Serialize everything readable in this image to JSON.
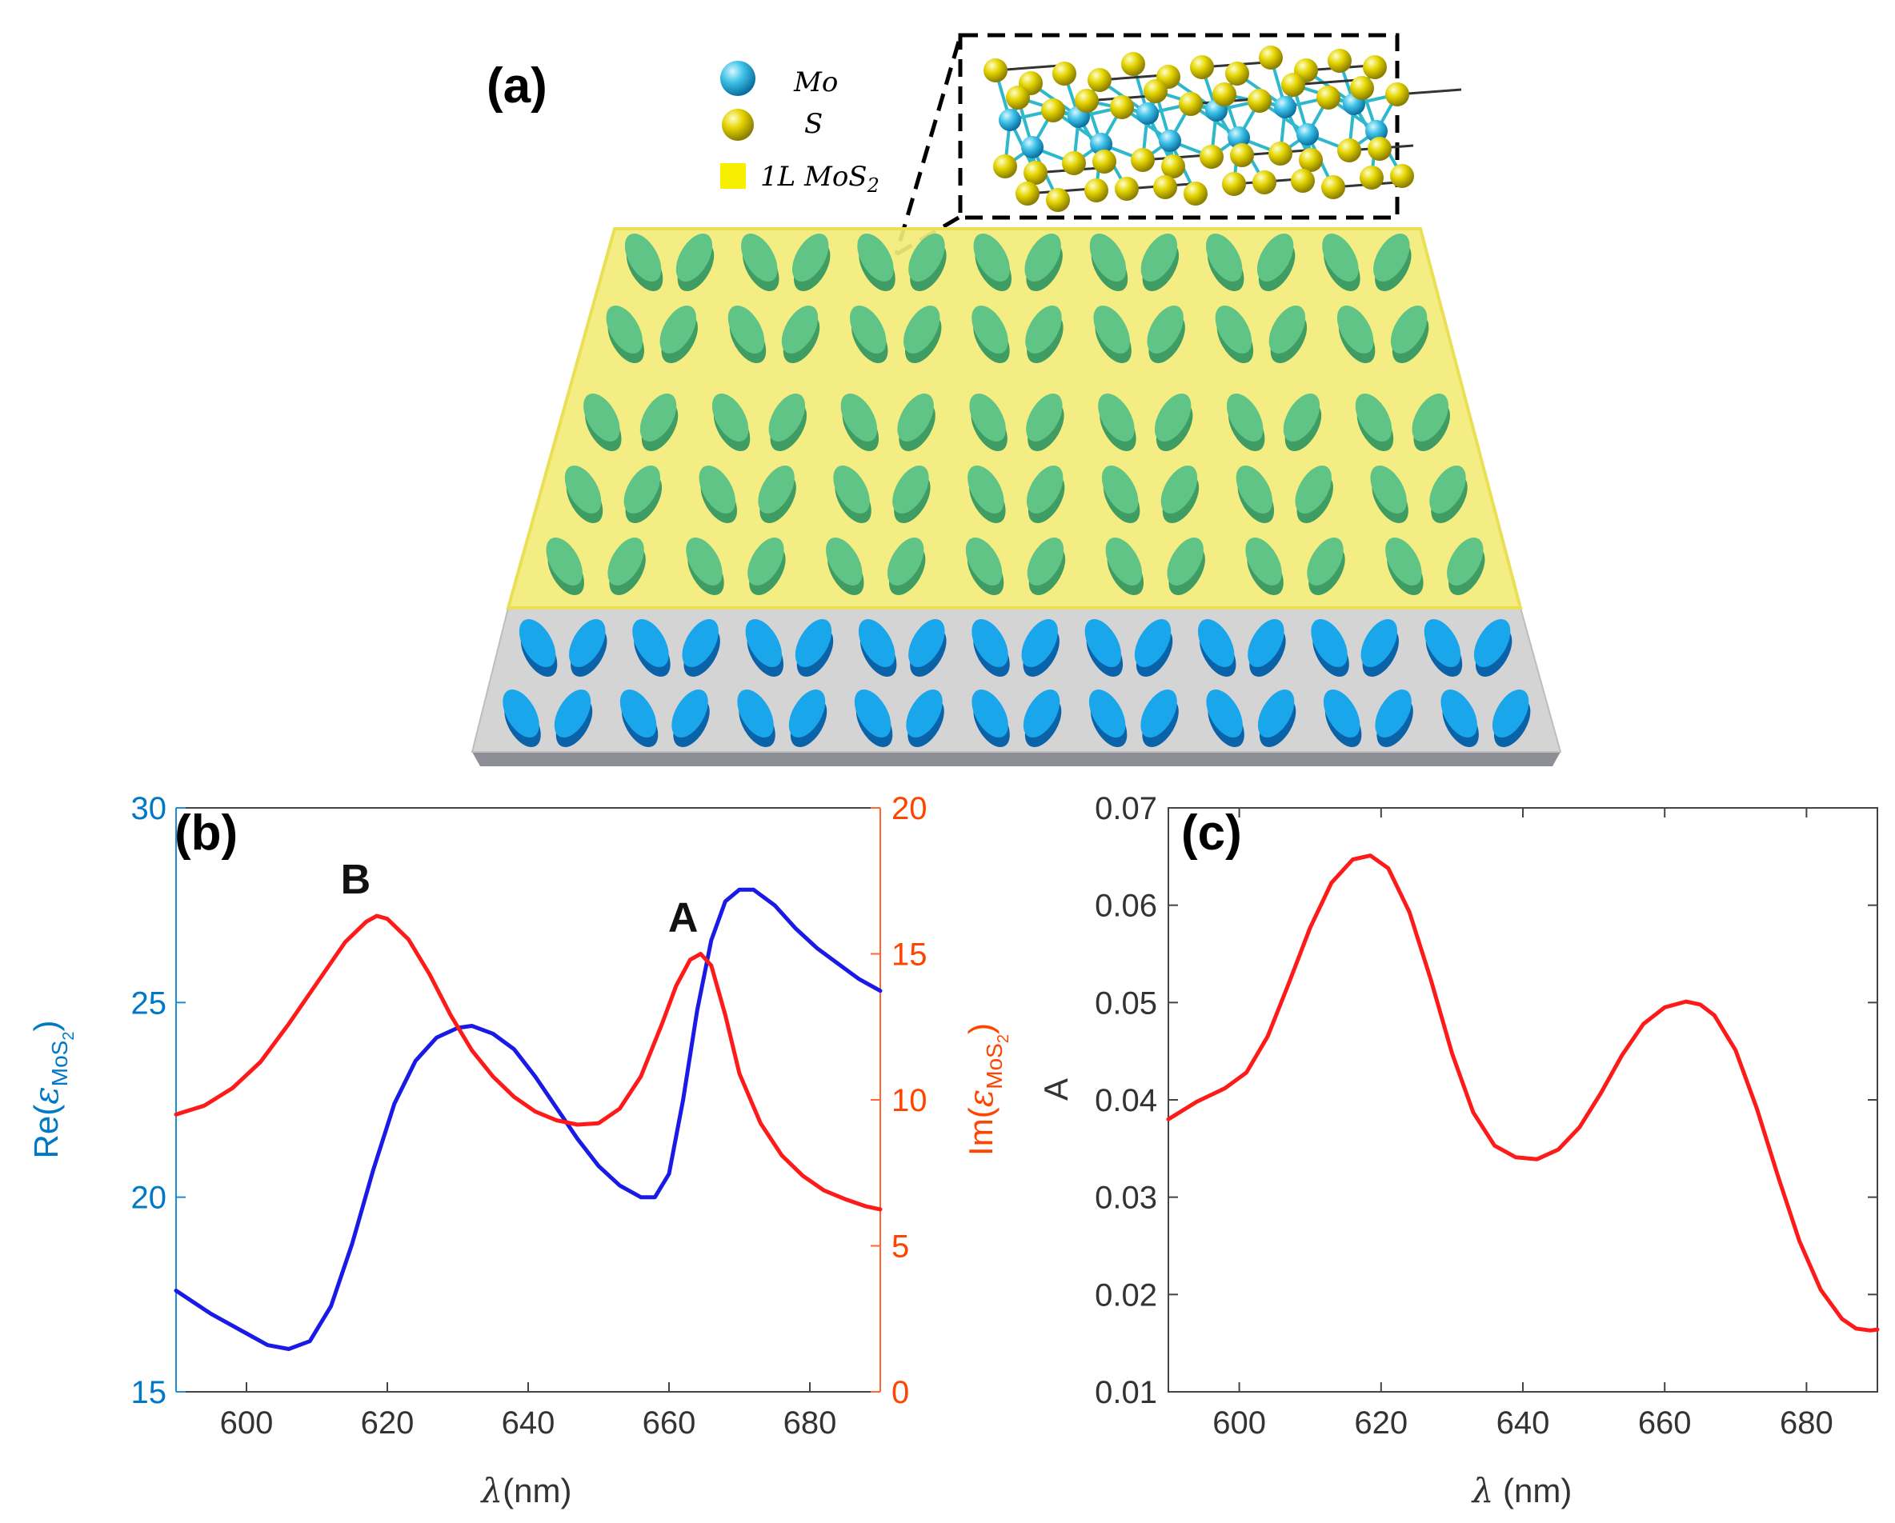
{
  "panel_a": {
    "label": "(a)",
    "legend": {
      "mo": "Mo",
      "s": "S",
      "layer_main": "1L MoS",
      "layer_sub": "2"
    },
    "colors": {
      "mo": "#2eb8cc",
      "s": "#e6d400",
      "layer": "#f2ea6b",
      "substrate": "#d2d2d2",
      "green_disk": "#5fc485",
      "blue_disk": "#1aa6ea"
    }
  },
  "chart_data": [
    {
      "type": "line",
      "panel": "(b)",
      "xlabel_symbol": "λ",
      "xlabel": "(nm)",
      "ylabel_left": {
        "pre": "Re(",
        "eps": "ε",
        "sub": "MoS",
        "sub2": "2",
        "post": ")"
      },
      "ylabel_right": {
        "pre": "Im(",
        "eps": "ε",
        "sub": "MoS",
        "sub2": "2",
        "post": ")"
      },
      "xlim": [
        590,
        690
      ],
      "ylim_left": [
        15,
        30
      ],
      "ylim_right": [
        0,
        20
      ],
      "xticks": [
        600,
        620,
        640,
        660,
        680
      ],
      "yticks_left": [
        15,
        20,
        25,
        30
      ],
      "yticks_right": [
        0,
        5,
        10,
        15,
        20
      ],
      "annotations": [
        {
          "text": "B",
          "x": 618,
          "y_right": 16.3
        },
        {
          "text": "A",
          "x": 664.5,
          "y_right": 15.0
        }
      ],
      "series": [
        {
          "name": "Re",
          "axis": "left",
          "color": "#1a1ae6",
          "x": [
            590,
            595,
            600,
            603,
            606,
            609,
            612,
            615,
            618,
            621,
            624,
            627,
            630,
            632,
            635,
            638,
            641,
            644,
            647,
            650,
            653,
            656,
            658,
            660,
            662,
            664,
            666,
            668,
            670,
            672,
            675,
            678,
            681,
            684,
            687,
            690
          ],
          "y": [
            17.6,
            17.0,
            16.5,
            16.2,
            16.1,
            16.3,
            17.2,
            18.8,
            20.7,
            22.4,
            23.5,
            24.1,
            24.35,
            24.4,
            24.2,
            23.8,
            23.1,
            22.3,
            21.5,
            20.8,
            20.3,
            20.0,
            20.0,
            20.6,
            22.5,
            24.8,
            26.6,
            27.6,
            27.9,
            27.9,
            27.5,
            26.9,
            26.4,
            26.0,
            25.6,
            25.3
          ]
        },
        {
          "name": "Im",
          "axis": "right",
          "color": "#ff1a1a",
          "x": [
            590,
            594,
            598,
            602,
            606,
            610,
            614,
            617,
            618.5,
            620,
            623,
            626,
            629,
            632,
            635,
            638,
            641,
            644,
            647,
            650,
            653,
            656,
            659,
            661,
            663,
            664.5,
            666,
            668,
            670,
            673,
            676,
            679,
            682,
            685,
            688,
            690
          ],
          "y": [
            9.5,
            9.8,
            10.4,
            11.3,
            12.6,
            14.0,
            15.4,
            16.1,
            16.3,
            16.2,
            15.5,
            14.3,
            12.9,
            11.7,
            10.8,
            10.1,
            9.6,
            9.3,
            9.15,
            9.2,
            9.7,
            10.8,
            12.6,
            13.9,
            14.8,
            15.0,
            14.6,
            12.9,
            10.9,
            9.2,
            8.1,
            7.4,
            6.9,
            6.6,
            6.35,
            6.25
          ]
        }
      ]
    },
    {
      "type": "line",
      "panel": "(c)",
      "xlabel_symbol": "λ",
      "xlabel": " (nm)",
      "ylabel": "A",
      "xlim": [
        590,
        690
      ],
      "ylim": [
        0.01,
        0.07
      ],
      "xticks": [
        600,
        620,
        640,
        660,
        680
      ],
      "yticks": [
        0.01,
        0.02,
        0.03,
        0.04,
        0.05,
        0.06,
        0.07
      ],
      "series": [
        {
          "name": "A",
          "color": "#ff1a1a",
          "x": [
            590,
            594,
            598,
            601,
            604,
            607,
            610,
            613,
            616,
            618.5,
            621,
            624,
            627,
            630,
            633,
            636,
            639,
            642,
            645,
            648,
            651,
            654,
            657,
            660,
            663,
            665,
            667,
            670,
            673,
            676,
            679,
            682,
            685,
            687,
            689,
            690
          ],
          "y": [
            0.038,
            0.0398,
            0.0412,
            0.0428,
            0.0465,
            0.052,
            0.0577,
            0.0623,
            0.0647,
            0.0651,
            0.0638,
            0.0593,
            0.0524,
            0.0448,
            0.0387,
            0.0353,
            0.0341,
            0.0339,
            0.0349,
            0.0372,
            0.0407,
            0.0446,
            0.0478,
            0.0495,
            0.0501,
            0.0498,
            0.0487,
            0.0451,
            0.0391,
            0.0321,
            0.0255,
            0.0205,
            0.0175,
            0.0165,
            0.0163,
            0.0164
          ]
        }
      ]
    }
  ]
}
